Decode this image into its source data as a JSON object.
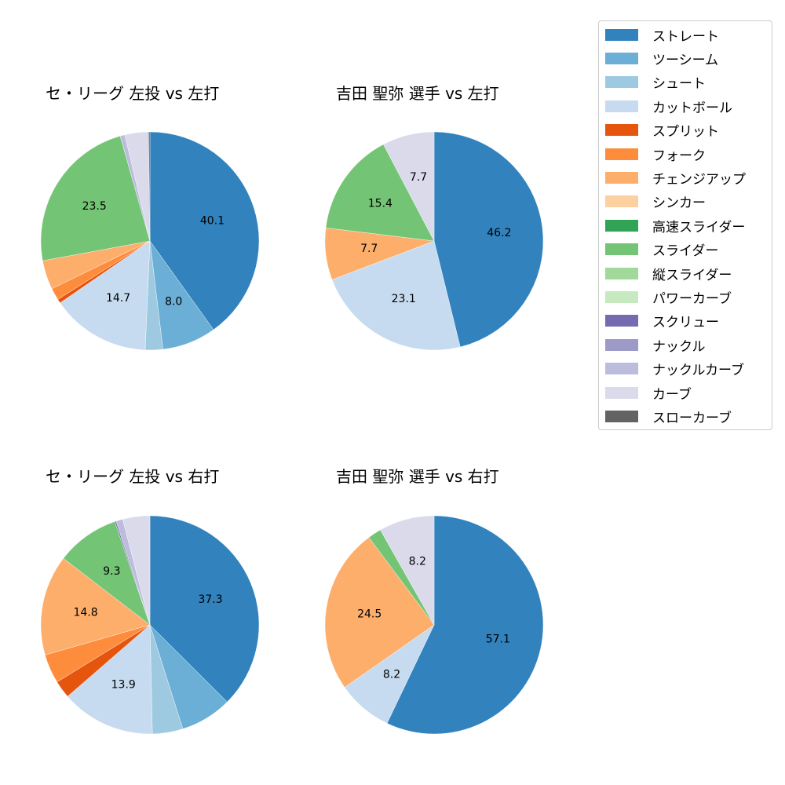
{
  "legend": {
    "items": [
      {
        "label": "ストレート",
        "color": "#3182bd"
      },
      {
        "label": "ツーシーム",
        "color": "#6baed6"
      },
      {
        "label": "シュート",
        "color": "#9ecae1"
      },
      {
        "label": "カットボール",
        "color": "#c6dbef"
      },
      {
        "label": "スプリット",
        "color": "#e6550d"
      },
      {
        "label": "フォーク",
        "color": "#fd8d3c"
      },
      {
        "label": "チェンジアップ",
        "color": "#fdae6b"
      },
      {
        "label": "シンカー",
        "color": "#fdd0a2"
      },
      {
        "label": "高速スライダー",
        "color": "#31a354"
      },
      {
        "label": "スライダー",
        "color": "#74c476"
      },
      {
        "label": "縦スライダー",
        "color": "#a1d99b"
      },
      {
        "label": "パワーカーブ",
        "color": "#c7e9c0"
      },
      {
        "label": "スクリュー",
        "color": "#756bb1"
      },
      {
        "label": "ナックル",
        "color": "#9e9ac8"
      },
      {
        "label": "ナックルカーブ",
        "color": "#bcbddc"
      },
      {
        "label": "カーブ",
        "color": "#dadaeb"
      },
      {
        "label": "スローカーブ",
        "color": "#636363"
      }
    ]
  },
  "chart_data": [
    {
      "type": "pie",
      "title": "セ・リーグ 左投 vs 左打",
      "start_angle": 90,
      "direction": "clockwise",
      "slices": [
        {
          "label": "ストレート",
          "value": 40.1,
          "show_label": true
        },
        {
          "label": "ツーシーム",
          "value": 8.0,
          "show_label": true
        },
        {
          "label": "シュート",
          "value": 2.6,
          "show_label": false
        },
        {
          "label": "カットボール",
          "value": 14.7,
          "show_label": true
        },
        {
          "label": "スプリット",
          "value": 0.6,
          "show_label": false
        },
        {
          "label": "フォーク",
          "value": 1.8,
          "show_label": false
        },
        {
          "label": "チェンジアップ",
          "value": 4.3,
          "show_label": false
        },
        {
          "label": "スライダー",
          "value": 23.5,
          "show_label": true
        },
        {
          "label": "ナックルカーブ",
          "value": 0.7,
          "show_label": false
        },
        {
          "label": "カーブ",
          "value": 3.5,
          "show_label": false
        },
        {
          "label": "スローカーブ",
          "value": 0.2,
          "show_label": false
        }
      ]
    },
    {
      "type": "pie",
      "title": "吉田 聖弥 選手 vs 左打",
      "start_angle": 90,
      "direction": "clockwise",
      "slices": [
        {
          "label": "ストレート",
          "value": 46.2,
          "show_label": true
        },
        {
          "label": "カットボール",
          "value": 23.1,
          "show_label": true
        },
        {
          "label": "チェンジアップ",
          "value": 7.7,
          "show_label": true
        },
        {
          "label": "スライダー",
          "value": 15.4,
          "show_label": true
        },
        {
          "label": "カーブ",
          "value": 7.7,
          "show_label": true
        }
      ]
    },
    {
      "type": "pie",
      "title": "セ・リーグ 左投 vs 右打",
      "start_angle": 90,
      "direction": "clockwise",
      "slices": [
        {
          "label": "ストレート",
          "value": 37.3,
          "show_label": true
        },
        {
          "label": "ツーシーム",
          "value": 7.6,
          "show_label": false
        },
        {
          "label": "シュート",
          "value": 4.5,
          "show_label": false
        },
        {
          "label": "カットボール",
          "value": 13.9,
          "show_label": true
        },
        {
          "label": "スプリット",
          "value": 2.6,
          "show_label": false
        },
        {
          "label": "フォーク",
          "value": 4.3,
          "show_label": false
        },
        {
          "label": "チェンジアップ",
          "value": 14.8,
          "show_label": true
        },
        {
          "label": "スライダー",
          "value": 9.3,
          "show_label": true
        },
        {
          "label": "スクリュー",
          "value": 0.2,
          "show_label": false
        },
        {
          "label": "ナックルカーブ",
          "value": 1.0,
          "show_label": false
        },
        {
          "label": "カーブ",
          "value": 4.0,
          "show_label": false
        }
      ]
    },
    {
      "type": "pie",
      "title": "吉田 聖弥 選手 vs 右打",
      "start_angle": 90,
      "direction": "clockwise",
      "slices": [
        {
          "label": "ストレート",
          "value": 57.1,
          "show_label": true
        },
        {
          "label": "カットボール",
          "value": 8.2,
          "show_label": true
        },
        {
          "label": "チェンジアップ",
          "value": 24.5,
          "show_label": true
        },
        {
          "label": "スライダー",
          "value": 2.0,
          "show_label": false
        },
        {
          "label": "カーブ",
          "value": 8.2,
          "show_label": true
        }
      ]
    }
  ]
}
